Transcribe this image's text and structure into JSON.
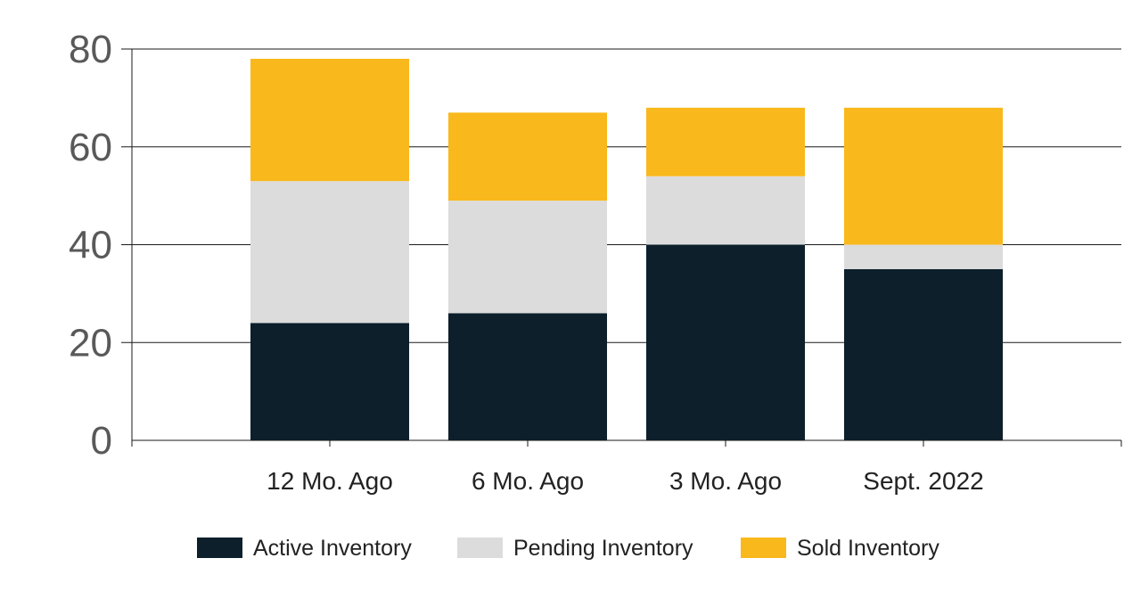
{
  "chart_data": {
    "type": "bar",
    "stacked": true,
    "categories": [
      "12 Mo. Ago",
      "6 Mo. Ago",
      "3 Mo. Ago",
      "Sept. 2022"
    ],
    "series": [
      {
        "name": "Active Inventory",
        "values": [
          24,
          26,
          40,
          35
        ],
        "color": "#0c1f2b"
      },
      {
        "name": "Pending Inventory",
        "values": [
          29,
          23,
          14,
          5
        ],
        "color": "#dcdcdc"
      },
      {
        "name": "Sold Inventory",
        "values": [
          25,
          18,
          14,
          28
        ],
        "color": "#f9b81b"
      }
    ],
    "title": "",
    "xlabel": "",
    "ylabel": "",
    "ylim": [
      0,
      80
    ],
    "yticks": [
      "0",
      "20",
      "40",
      "60",
      "80"
    ],
    "grid": true,
    "legend_position": "bottom"
  }
}
